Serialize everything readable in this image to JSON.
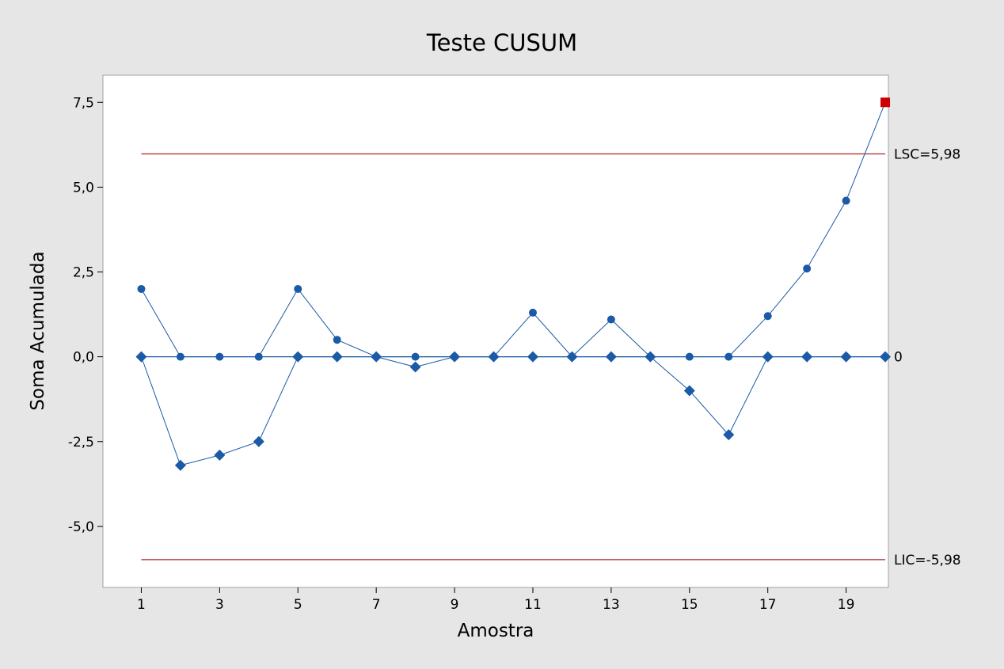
{
  "chart_data": {
    "type": "line",
    "title": "Teste CUSUM",
    "xlabel": "Amostra",
    "ylabel": "Soma Acumulada",
    "x": [
      1,
      2,
      3,
      4,
      5,
      6,
      7,
      8,
      9,
      10,
      11,
      12,
      13,
      14,
      15,
      16,
      17,
      18,
      19,
      20
    ],
    "xlim": [
      0.02,
      20.08
    ],
    "ylim": [
      -6.8,
      8.3
    ],
    "x_ticks": [
      1,
      3,
      5,
      7,
      9,
      11,
      13,
      15,
      17,
      19
    ],
    "x_tick_labels": [
      "1",
      "3",
      "5",
      "7",
      "9",
      "11",
      "13",
      "15",
      "17",
      "19"
    ],
    "y_ticks": [
      -5,
      -2.5,
      0,
      2.5,
      5,
      7.5
    ],
    "y_tick_labels": [
      "-5,0",
      "-2,5",
      "0,0",
      "2,5",
      "5,0",
      "7,5"
    ],
    "series": [
      {
        "marker": "circle",
        "color": "#1a5aa6",
        "values": [
          2.0,
          0.0,
          0.0,
          0.0,
          2.0,
          0.5,
          0.0,
          0.0,
          0.0,
          0.0,
          1.3,
          0.0,
          1.1,
          0.0,
          0.0,
          0.0,
          1.2,
          2.6,
          4.6,
          7.5
        ]
      },
      {
        "marker": "diamond",
        "color": "#1a5aa6",
        "values": [
          0.0,
          -3.2,
          -2.9,
          -2.5,
          0.0,
          0.0,
          0.0,
          -0.3,
          0.0,
          0.0,
          0.0,
          0.0,
          0.0,
          0.0,
          -1.0,
          -2.3,
          0.0,
          0.0,
          0.0,
          0.0
        ]
      }
    ],
    "out_of_control": [
      {
        "series": 0,
        "index": 19,
        "marker": "square",
        "color": "#cc0000"
      }
    ],
    "reference_lines": [
      {
        "y": 5.98,
        "label": "LSC=5,98",
        "color": "#b22222"
      },
      {
        "y": 0,
        "label": "0",
        "color": "#1a5aa6"
      },
      {
        "y": -5.98,
        "label": "LIC=-5,98",
        "color": "#b22222"
      }
    ],
    "grid": false,
    "legend": "none"
  }
}
